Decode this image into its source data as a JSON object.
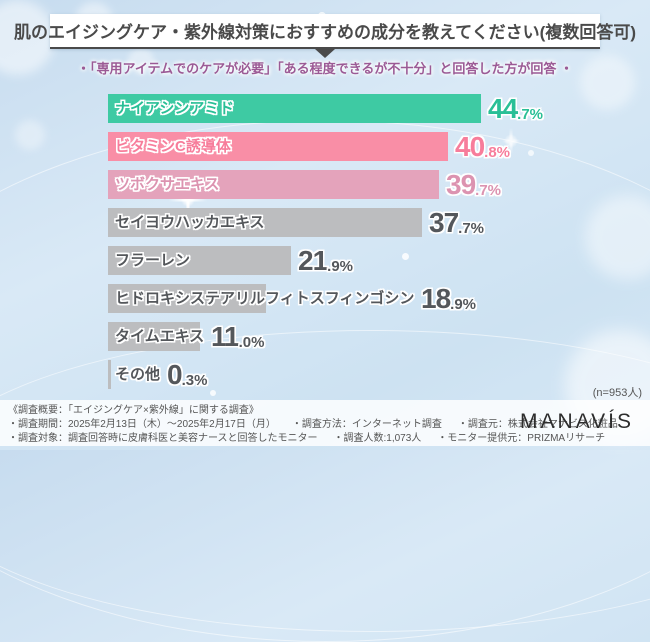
{
  "header": {
    "title": "肌のエイジングケア・紫外線対策におすすめの成分を教えてください(複数回答可)",
    "subtitle": "・「専用アイテムでのケアが必要」「ある程度できるが不十分」と回答した方が回答 ・"
  },
  "chart_data": {
    "type": "bar",
    "orientation": "horizontal",
    "title": "肌のエイジングケア・紫外線対策におすすめの成分を教えてください(複数回答可)",
    "categories": [
      "ナイアシンアミド",
      "ビタミンC誘導体",
      "ツボクサエキス",
      "セイヨウハッカエキス",
      "フラーレン",
      "ヒドロキシステアリルフィトスフィンゴシン",
      "タイムエキス",
      "その他"
    ],
    "values": [
      44.7,
      40.8,
      39.7,
      37.7,
      21.9,
      18.9,
      11.0,
      0.3
    ],
    "unit": "%",
    "xlim": [
      0,
      65
    ],
    "sample_note": "(n=953人)",
    "legend": "none",
    "colors": {
      "bars": [
        "#3ecaa3",
        "#f98ea6",
        "#e4a3bb",
        "#bcbdbf",
        "#bcbdbf",
        "#bcbdbf",
        "#bcbdbf",
        "#bcbdbf"
      ],
      "text": [
        "#29bf96",
        "#f77d9b",
        "#dc93b0",
        "#54575b",
        "#54575b",
        "#54575b",
        "#54575b",
        "#54575b"
      ]
    }
  },
  "footer": {
    "heading": "《調査概要：「エイジングケア×紫外線」に関する調査》",
    "line2": [
      "・調査期間：2025年2月13日（木）～2025年2月17日（月）",
      "・調査方法：インターネット調査",
      "・調査元：株式会社マナビス化粧品"
    ],
    "line3": [
      "・調査対象：調査回答時に皮膚科医と美容ナースと回答したモニター",
      "・調査人数:1,073人",
      "・モニター提供元：PRIZMAリサーチ"
    ],
    "logo": "MANAVÍS"
  }
}
